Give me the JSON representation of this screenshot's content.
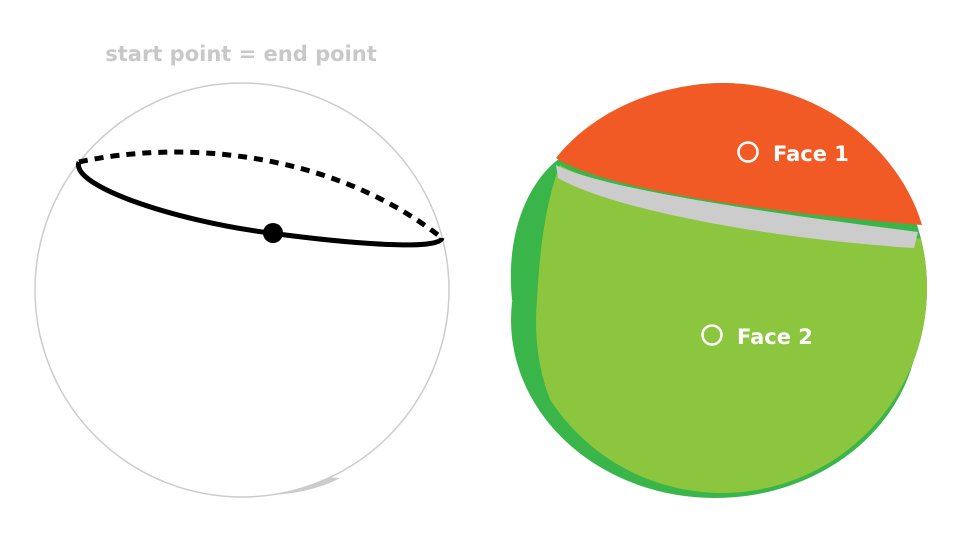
{
  "left_sphere": {
    "caption": "start point = end point",
    "colors": {
      "caption": "#c8c8c8",
      "outline": "#cccccc",
      "shadow": "#cccccc",
      "curve": "#000000",
      "point": "#000000"
    }
  },
  "right_sphere": {
    "faces": [
      {
        "label": "Face 1",
        "color": "#f15a24"
      },
      {
        "label": "Face 2",
        "color": "#8cc63f"
      }
    ],
    "colors": {
      "shadow": "#39b54a",
      "gap": "#cccccc",
      "label_text": "#ffffff",
      "marker": "#ffffff"
    }
  }
}
